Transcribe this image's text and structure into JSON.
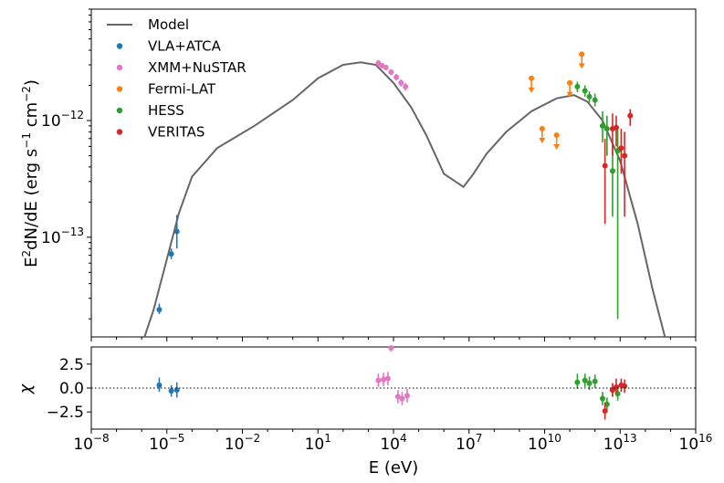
{
  "chart_data": {
    "type": "scatter",
    "x_scale": "log",
    "y_scale": "log",
    "xlim": [
      1e-08,
      1e+16
    ],
    "ylim": [
      1.4e-14,
      9e-12
    ],
    "xlabel": "E (eV)",
    "ylabel_main": "E",
    "ylabel_sup": "2",
    "ylabel_rest": "dN/dE (erg s",
    "ylabel_sup2": "−1",
    "ylabel_cm": " cm",
    "ylabel_sup3": "−2",
    "ylabel_end": ")",
    "x_ticks": [
      {
        "value": 1e-08,
        "base": "10",
        "exp": "−8"
      },
      {
        "value": 1e-05,
        "base": "10",
        "exp": "−5"
      },
      {
        "value": 0.01,
        "base": "10",
        "exp": "−2"
      },
      {
        "value": 10,
        "base": "10",
        "exp": "1"
      },
      {
        "value": 10000.0,
        "base": "10",
        "exp": "4"
      },
      {
        "value": 10000000.0,
        "base": "10",
        "exp": "7"
      },
      {
        "value": 10000000000.0,
        "base": "10",
        "exp": "10"
      },
      {
        "value": 10000000000000.0,
        "base": "10",
        "exp": "13"
      },
      {
        "value": 1e+16,
        "base": "10",
        "exp": "16"
      }
    ],
    "y_ticks": [
      {
        "value": 1e-13,
        "base": "10",
        "exp": "−13"
      },
      {
        "value": 1e-12,
        "base": "10",
        "exp": "−12"
      }
    ],
    "residual": {
      "ylabel": "χ",
      "ylim": [
        -4.3,
        4.3
      ],
      "ticks": [
        {
          "value": 2.5,
          "label": "2.5"
        },
        {
          "value": 0,
          "label": "0.0"
        },
        {
          "value": -2.5,
          "label": "−2.5"
        }
      ],
      "zero_line": true
    },
    "model": {
      "name": "Model",
      "color": "#666666",
      "points": [
        [
          1.3e-06,
          1.4e-14
        ],
        [
          3e-06,
          2.4e-14
        ],
        [
          1e-05,
          6.5e-14
        ],
        [
          3e-05,
          1.6e-13
        ],
        [
          0.0001,
          3.3e-13
        ],
        [
          0.001,
          5.8e-13
        ],
        [
          0.03,
          9e-13
        ],
        [
          1,
          1.5e-12
        ],
        [
          10,
          2.3e-12
        ],
        [
          100,
          3e-12
        ],
        [
          500,
          3.15e-12
        ],
        [
          2000,
          3e-12
        ],
        [
          10000.0,
          2.1e-12
        ],
        [
          50000.0,
          1.3e-12
        ],
        [
          200000.0,
          7.5e-13
        ],
        [
          1000000.0,
          3.5e-13
        ],
        [
          6000000.0,
          2.7e-13
        ],
        [
          15000000.0,
          3.5e-13
        ],
        [
          50000000.0,
          5.2e-13
        ],
        [
          300000000.0,
          8e-13
        ],
        [
          3000000000.0,
          1.2e-12
        ],
        [
          30000000000.0,
          1.55e-12
        ],
        [
          150000000000.0,
          1.65e-12
        ],
        [
          500000000000.0,
          1.45e-12
        ],
        [
          2000000000000.0,
          1e-12
        ],
        [
          10000000000000.0,
          4.5e-13
        ],
        [
          50000000000000.0,
          1.3e-13
        ],
        [
          200000000000000.0,
          3.5e-14
        ],
        [
          600000000000000.0,
          1.4e-14
        ]
      ]
    },
    "series": [
      {
        "name": "VLA+ATCA",
        "color": "#1f77b4",
        "points": [
          {
            "x": 5e-06,
            "y": 2.4e-14,
            "lo": 2.2e-14,
            "hi": 2.7e-14
          },
          {
            "x": 1.5e-05,
            "y": 7.2e-14,
            "lo": 6.5e-14,
            "hi": 8e-14
          },
          {
            "x": 2.5e-05,
            "y": 1.12e-13,
            "lo": 8e-14,
            "hi": 1.55e-13
          }
        ],
        "residuals": [
          {
            "x": 5e-06,
            "y": 0.3,
            "lo": -0.4,
            "hi": 1.1
          },
          {
            "x": 1.5e-05,
            "y": -0.3,
            "lo": -0.9,
            "hi": 0.3
          },
          {
            "x": 2.5e-05,
            "y": -0.2,
            "lo": -1.0,
            "hi": 0.6
          }
        ]
      },
      {
        "name": "XMM+NuSTAR",
        "color": "#e377c2",
        "points": [
          {
            "x": 2500.0,
            "y": 3.1e-12,
            "lo": 2.9e-12,
            "hi": 3.3e-12
          },
          {
            "x": 3500.0,
            "y": 2.95e-12,
            "lo": 2.8e-12,
            "hi": 3.1e-12
          },
          {
            "x": 5000.0,
            "y": 2.85e-12,
            "lo": 2.7e-12,
            "hi": 3e-12
          },
          {
            "x": 8000.0,
            "y": 2.6e-12,
            "lo": 2.45e-12,
            "hi": 2.75e-12
          },
          {
            "x": 13000.0,
            "y": 2.35e-12,
            "lo": 2.2e-12,
            "hi": 2.5e-12
          },
          {
            "x": 20000.0,
            "y": 2.1e-12,
            "lo": 1.95e-12,
            "hi": 2.25e-12
          },
          {
            "x": 30000.0,
            "y": 1.95e-12,
            "lo": 1.8e-12,
            "hi": 2.1e-12
          }
        ],
        "residuals": [
          {
            "x": 2500.0,
            "y": 0.8,
            "lo": 0.1,
            "hi": 1.5
          },
          {
            "x": 4000.0,
            "y": 0.9,
            "lo": 0.2,
            "hi": 1.6
          },
          {
            "x": 6000.0,
            "y": 1.0,
            "lo": 0.3,
            "hi": 1.7
          },
          {
            "x": 8000.0,
            "y": 4.2,
            "lo": 3.8,
            "hi": 4.3
          },
          {
            "x": 15000.0,
            "y": -0.9,
            "lo": -1.6,
            "hi": -0.2
          },
          {
            "x": 22000.0,
            "y": -1.1,
            "lo": -1.8,
            "hi": -0.4
          },
          {
            "x": 35000.0,
            "y": -0.8,
            "lo": -1.5,
            "hi": -0.1
          }
        ]
      },
      {
        "name": "Fermi-LAT",
        "color": "#ff7f0e",
        "upper_limits": true,
        "points": [
          {
            "x": 3000000000.0,
            "y": 2.3e-12
          },
          {
            "x": 8000000000.0,
            "y": 8.5e-13
          },
          {
            "x": 30000000000.0,
            "y": 7.5e-13
          },
          {
            "x": 100000000000.0,
            "y": 2.1e-12
          },
          {
            "x": 300000000000.0,
            "y": 3.7e-12
          }
        ]
      },
      {
        "name": "HESS",
        "color": "#2ca02c",
        "points": [
          {
            "x": 200000000000.0,
            "y": 1.95e-12,
            "lo": 1.75e-12,
            "hi": 2.15e-12
          },
          {
            "x": 400000000000.0,
            "y": 1.8e-12,
            "lo": 1.6e-12,
            "hi": 2e-12
          },
          {
            "x": 600000000000.0,
            "y": 1.6e-12,
            "lo": 1.42e-12,
            "hi": 1.78e-12
          },
          {
            "x": 1000000000000.0,
            "y": 1.5e-12,
            "lo": 1.32e-12,
            "hi": 1.7e-12
          },
          {
            "x": 2000000000000.0,
            "y": 9e-13,
            "lo": 6.5e-13,
            "hi": 1.2e-12
          },
          {
            "x": 3000000000000.0,
            "y": 8.5e-13,
            "lo": 5e-13,
            "hi": 1.1e-12
          },
          {
            "x": 5000000000000.0,
            "y": 3.7e-13,
            "lo": 1.5e-13,
            "hi": 6.5e-13
          },
          {
            "x": 8000000000000.0,
            "y": 5.5e-13,
            "lo": 2e-14,
            "hi": 9e-13
          }
        ],
        "residuals": [
          {
            "x": 200000000000.0,
            "y": 0.6,
            "lo": -0.1,
            "hi": 1.5
          },
          {
            "x": 400000000000.0,
            "y": 0.8,
            "lo": 0.1,
            "hi": 1.5
          },
          {
            "x": 600000000000.0,
            "y": 0.5,
            "lo": -0.2,
            "hi": 1.2
          },
          {
            "x": 1000000000000.0,
            "y": 0.7,
            "lo": 0.0,
            "hi": 1.4
          },
          {
            "x": 2000000000000.0,
            "y": -1.1,
            "lo": -1.8,
            "hi": -0.4
          },
          {
            "x": 3000000000000.0,
            "y": -1.7,
            "lo": -2.4,
            "hi": -1.0
          },
          {
            "x": 5000000000000.0,
            "y": -0.2,
            "lo": -0.9,
            "hi": 0.5
          },
          {
            "x": 8000000000000.0,
            "y": -0.6,
            "lo": -1.3,
            "hi": 0.1
          }
        ]
      },
      {
        "name": "VERITAS",
        "color": "#d62728",
        "points": [
          {
            "x": 2500000000000.0,
            "y": 4.1e-13,
            "lo": 1.3e-13,
            "hi": 7e-13
          },
          {
            "x": 5000000000000.0,
            "y": 8.5e-13,
            "lo": 5e-13,
            "hi": 1.15e-12
          },
          {
            "x": 7000000000000.0,
            "y": 8.7e-13,
            "lo": 6e-13,
            "hi": 1.1e-12
          },
          {
            "x": 11000000000000.0,
            "y": 5.8e-13,
            "lo": 3.5e-13,
            "hi": 8.5e-13
          },
          {
            "x": 15000000000000.0,
            "y": 5e-13,
            "lo": 1.5e-13,
            "hi": 8e-13
          },
          {
            "x": 25000000000000.0,
            "y": 1.1e-12,
            "lo": 9e-13,
            "hi": 1.25e-12
          }
        ],
        "residuals": [
          {
            "x": 2500000000000.0,
            "y": -2.4,
            "lo": -3.3,
            "hi": -1.5
          },
          {
            "x": 5000000000000.0,
            "y": -0.2,
            "lo": -0.9,
            "hi": 0.5
          },
          {
            "x": 7000000000000.0,
            "y": 0.1,
            "lo": -0.6,
            "hi": 1.0
          },
          {
            "x": 11000000000000.0,
            "y": 0.3,
            "lo": -0.4,
            "hi": 1.0
          },
          {
            "x": 15000000000000.0,
            "y": 0.2,
            "lo": -0.5,
            "hi": 0.9
          }
        ]
      }
    ],
    "legend": {
      "placement": "upper-left",
      "entries": [
        "Model",
        "VLA+ATCA",
        "XMM+NuSTAR",
        "Fermi-LAT",
        "HESS",
        "VERITAS"
      ]
    }
  }
}
